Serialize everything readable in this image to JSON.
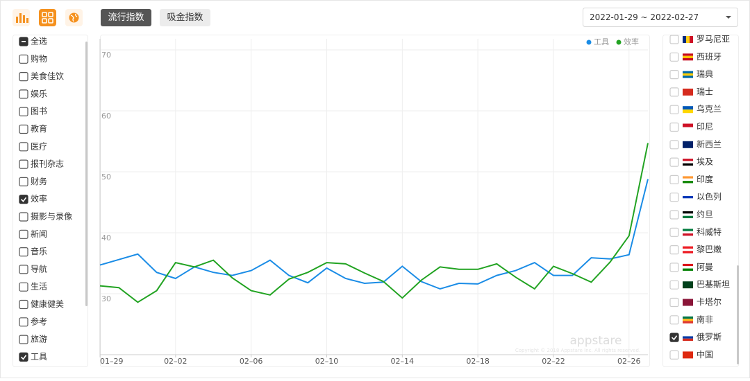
{
  "toolbar": {
    "tabs": [
      {
        "label": "流行指数",
        "active": true
      },
      {
        "label": "吸金指数",
        "active": false
      }
    ],
    "date_range": "2022-01-29 ~ 2022-02-27"
  },
  "categories_panel": {
    "items": [
      {
        "label": "全选",
        "state": "indeterminate"
      },
      {
        "label": "购物",
        "state": "unchecked"
      },
      {
        "label": "美食佳饮",
        "state": "unchecked"
      },
      {
        "label": "娱乐",
        "state": "unchecked"
      },
      {
        "label": "图书",
        "state": "unchecked"
      },
      {
        "label": "教育",
        "state": "unchecked"
      },
      {
        "label": "医疗",
        "state": "unchecked"
      },
      {
        "label": "报刊杂志",
        "state": "unchecked"
      },
      {
        "label": "财务",
        "state": "unchecked"
      },
      {
        "label": "效率",
        "state": "checked"
      },
      {
        "label": "摄影与录像",
        "state": "unchecked"
      },
      {
        "label": "新闻",
        "state": "unchecked"
      },
      {
        "label": "音乐",
        "state": "unchecked"
      },
      {
        "label": "导航",
        "state": "unchecked"
      },
      {
        "label": "生活",
        "state": "unchecked"
      },
      {
        "label": "健康健美",
        "state": "unchecked"
      },
      {
        "label": "参考",
        "state": "unchecked"
      },
      {
        "label": "旅游",
        "state": "unchecked"
      },
      {
        "label": "工具",
        "state": "checked"
      }
    ]
  },
  "countries_panel": {
    "items": [
      {
        "label": "罗马尼亚",
        "state": "unchecked"
      },
      {
        "label": "西班牙",
        "state": "unchecked"
      },
      {
        "label": "瑞典",
        "state": "unchecked"
      },
      {
        "label": "瑞士",
        "state": "unchecked"
      },
      {
        "label": "乌克兰",
        "state": "unchecked"
      },
      {
        "label": "印尼",
        "state": "unchecked"
      },
      {
        "label": "新西兰",
        "state": "unchecked"
      },
      {
        "label": "埃及",
        "state": "unchecked"
      },
      {
        "label": "印度",
        "state": "unchecked"
      },
      {
        "label": "以色列",
        "state": "unchecked"
      },
      {
        "label": "约旦",
        "state": "unchecked"
      },
      {
        "label": "科威特",
        "state": "unchecked"
      },
      {
        "label": "黎巴嫩",
        "state": "unchecked"
      },
      {
        "label": "阿曼",
        "state": "unchecked"
      },
      {
        "label": "巴基斯坦",
        "state": "unchecked"
      },
      {
        "label": "卡塔尔",
        "state": "unchecked"
      },
      {
        "label": "南非",
        "state": "unchecked"
      },
      {
        "label": "俄罗斯",
        "state": "checked"
      },
      {
        "label": "中国",
        "state": "unchecked"
      }
    ]
  },
  "chart_data": {
    "type": "line",
    "categories": [
      "01–29",
      null,
      null,
      null,
      "02–02",
      null,
      null,
      null,
      "02–06",
      null,
      null,
      null,
      "02–10",
      null,
      null,
      null,
      "02–14",
      null,
      null,
      null,
      "02–18",
      null,
      null,
      null,
      "02–22",
      null,
      null,
      null,
      "02–26",
      null
    ],
    "series": [
      {
        "name": "工具",
        "color": "#1a8ce6",
        "values": [
          34.7,
          35.6,
          36.5,
          33.5,
          32.5,
          34.4,
          33.5,
          33.0,
          33.8,
          35.5,
          33.0,
          31.8,
          34.2,
          32.5,
          31.7,
          31.9,
          34.5,
          32.0,
          30.8,
          31.7,
          31.6,
          33.0,
          33.8,
          35.1,
          33.0,
          33.0,
          35.9,
          35.7,
          36.4,
          48.8
        ]
      },
      {
        "name": "效率",
        "color": "#22a322",
        "values": [
          31.3,
          31.0,
          28.6,
          30.5,
          35.1,
          34.4,
          35.5,
          32.6,
          30.5,
          29.8,
          32.4,
          33.5,
          35.1,
          34.9,
          33.4,
          32.0,
          29.3,
          32.2,
          34.4,
          34.0,
          34.0,
          34.9,
          32.7,
          30.8,
          34.5,
          33.3,
          31.9,
          35.2,
          39.5,
          54.7
        ]
      }
    ],
    "ylim": [
      20,
      70
    ],
    "yticks": [
      30,
      40,
      50,
      60,
      70
    ],
    "grid": true,
    "legend": "top-right",
    "watermark": "appstare",
    "copyright": "Copyright © 2018 Appstare Inc. All rights reserved."
  }
}
